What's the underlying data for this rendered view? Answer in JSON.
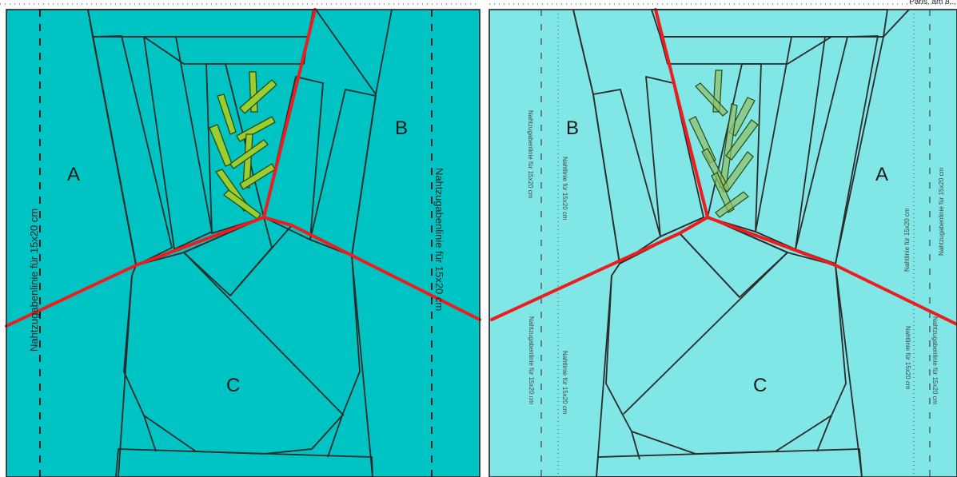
{
  "header": {
    "corner_text": "Paris, am 8..."
  },
  "colors": {
    "bg_left": "#00c4c4",
    "bg_right": "#80e6e6",
    "stalk_dark": "#4a8510",
    "stalk_mid": "#6b8e2b",
    "stalk_light_right": "#a6c484",
    "bulb": "#fdf6f0",
    "bulb_shade": "#f4ece2",
    "fronds": "#9acd32",
    "seam_red": "#ee1c1c"
  },
  "left_panel": {
    "label_a": "A",
    "label_b": "B",
    "label_c": "C",
    "seam_left_text": "Nahtzugabenlinie für 15x20 cm",
    "seam_right_text": "Nahtzugabenlinie für 15x20 cm"
  },
  "right_panel": {
    "label_a": "A",
    "label_b": "B",
    "label_c": "C",
    "tiny_1": "Nahtzugabenlinie für 15x20 cm",
    "tiny_2": "Nahtlinie für 15x20 cm",
    "tiny_3": "Nahtzugabenlinie für 15x20 cm",
    "tiny_4": "Nahtlinie für 15x20 cm",
    "tiny_5": "Nahtlinie für 15x20 cm",
    "tiny_6": "Nahtzugabenlinie für 15x20 cm",
    "tiny_7": "Nahtlinie für 15x20 cm",
    "tiny_8": "Nahtzugabenlinie für 15x20 cm"
  }
}
